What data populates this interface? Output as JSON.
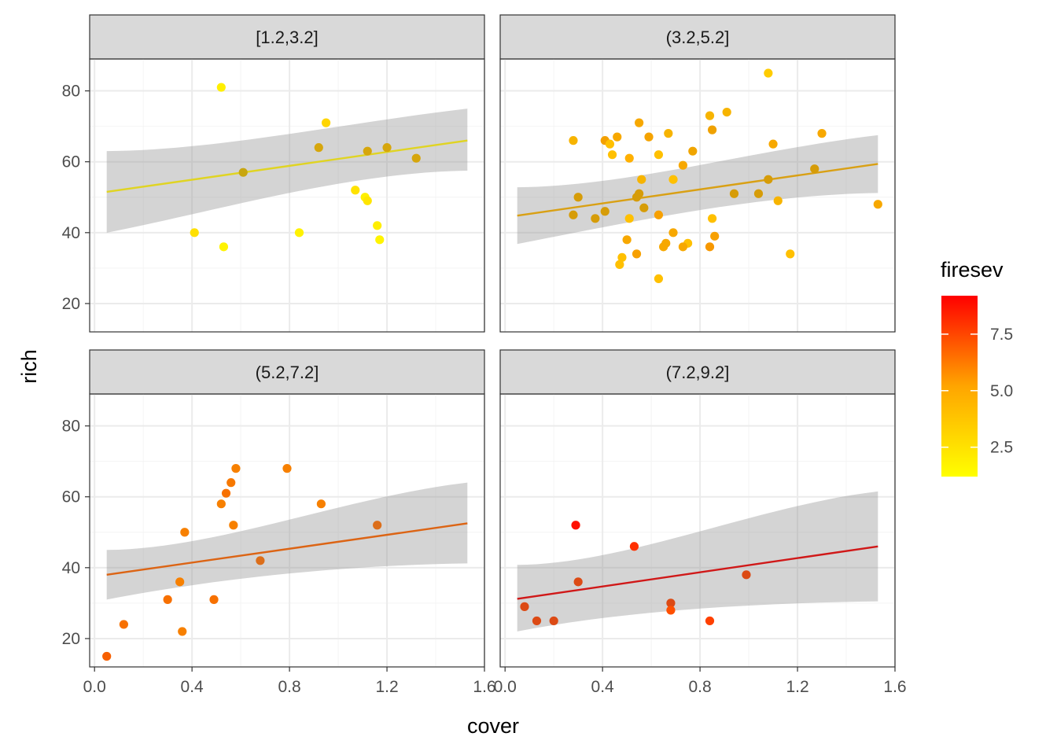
{
  "chart_data": {
    "type": "scatter",
    "facet_by": "firesev",
    "xlabel": "cover",
    "ylabel": "rich",
    "xlim": [
      -0.02,
      1.6
    ],
    "ylim": [
      12,
      89
    ],
    "x_ticks": [
      "0.0",
      "0.4",
      "0.8",
      "1.2",
      "1.6"
    ],
    "y_ticks": [
      "20",
      "40",
      "60",
      "80"
    ],
    "grid": true,
    "legend": {
      "title": "firesev",
      "placement": "right",
      "type": "colorbar",
      "range": [
        1.2,
        9.2
      ],
      "labels": [
        "2.5",
        "5.0",
        "7.5"
      ],
      "colors": [
        "#FFFF00",
        "#FFA500",
        "#FF0000"
      ]
    },
    "panels": [
      {
        "label": "[1.2,3.2]",
        "fit": {
          "x": [
            0.05,
            1.53
          ],
          "y": [
            51.5,
            66
          ],
          "lower": [
            40,
            57.5
          ],
          "upper": [
            63,
            75
          ],
          "color": "#E0D422"
        },
        "points": [
          {
            "x": 0.52,
            "y": 81,
            "color": "#FFEF00"
          },
          {
            "x": 0.95,
            "y": 71,
            "color": "#FFD500"
          },
          {
            "x": 0.92,
            "y": 64,
            "color": "#D6A60C"
          },
          {
            "x": 1.12,
            "y": 63,
            "color": "#D6A60C"
          },
          {
            "x": 1.2,
            "y": 64,
            "color": "#D6A60C"
          },
          {
            "x": 1.32,
            "y": 61,
            "color": "#D6A60C"
          },
          {
            "x": 0.61,
            "y": 57,
            "color": "#C8A60F"
          },
          {
            "x": 1.07,
            "y": 52,
            "color": "#FFE200"
          },
          {
            "x": 1.11,
            "y": 50,
            "color": "#FFF000"
          },
          {
            "x": 1.12,
            "y": 49,
            "color": "#FFE500"
          },
          {
            "x": 1.16,
            "y": 42,
            "color": "#FFEE00"
          },
          {
            "x": 0.41,
            "y": 40,
            "color": "#FFE000"
          },
          {
            "x": 0.84,
            "y": 40,
            "color": "#FFF200"
          },
          {
            "x": 1.17,
            "y": 38,
            "color": "#FFF400"
          },
          {
            "x": 0.53,
            "y": 36,
            "color": "#FFF300"
          }
        ]
      },
      {
        "label": "(3.2,5.2]",
        "fit": {
          "x": [
            0.05,
            1.53
          ],
          "y": [
            44.8,
            59.4
          ],
          "lower": [
            36.8,
            51.2
          ],
          "upper": [
            52.8,
            67.5
          ],
          "color": "#D9A014"
        },
        "points": [
          {
            "x": 1.08,
            "y": 85,
            "color": "#FFCC00"
          },
          {
            "x": 0.91,
            "y": 74,
            "color": "#F7B400"
          },
          {
            "x": 0.84,
            "y": 73,
            "color": "#F7B400"
          },
          {
            "x": 0.55,
            "y": 71,
            "color": "#F7A800"
          },
          {
            "x": 0.85,
            "y": 69,
            "color": "#EFA100"
          },
          {
            "x": 1.3,
            "y": 68,
            "color": "#F7A800"
          },
          {
            "x": 0.67,
            "y": 68,
            "color": "#F7B400"
          },
          {
            "x": 0.46,
            "y": 67,
            "color": "#F7A800"
          },
          {
            "x": 0.59,
            "y": 67,
            "color": "#F5A300"
          },
          {
            "x": 0.28,
            "y": 66,
            "color": "#F7B400"
          },
          {
            "x": 0.41,
            "y": 66,
            "color": "#F3A000"
          },
          {
            "x": 0.43,
            "y": 65,
            "color": "#FFC000"
          },
          {
            "x": 1.1,
            "y": 65,
            "color": "#F7A800"
          },
          {
            "x": 0.77,
            "y": 63,
            "color": "#F0A500"
          },
          {
            "x": 0.44,
            "y": 62,
            "color": "#FFC000"
          },
          {
            "x": 0.63,
            "y": 62,
            "color": "#FFC000"
          },
          {
            "x": 0.51,
            "y": 61,
            "color": "#FFB000"
          },
          {
            "x": 0.73,
            "y": 59,
            "color": "#F7A800"
          },
          {
            "x": 1.27,
            "y": 58,
            "color": "#D69C08"
          },
          {
            "x": 1.08,
            "y": 55,
            "color": "#D69C08"
          },
          {
            "x": 0.56,
            "y": 55,
            "color": "#F7B400"
          },
          {
            "x": 0.69,
            "y": 55,
            "color": "#FFC000"
          },
          {
            "x": 0.94,
            "y": 51,
            "color": "#D69C08"
          },
          {
            "x": 1.04,
            "y": 51,
            "color": "#D69C08"
          },
          {
            "x": 0.55,
            "y": 51,
            "color": "#D69C08"
          },
          {
            "x": 0.54,
            "y": 50,
            "color": "#D69C08"
          },
          {
            "x": 0.3,
            "y": 50,
            "color": "#D69C08"
          },
          {
            "x": 1.12,
            "y": 49,
            "color": "#F7B400"
          },
          {
            "x": 1.53,
            "y": 48,
            "color": "#F7A800"
          },
          {
            "x": 0.57,
            "y": 47,
            "color": "#D69C08"
          },
          {
            "x": 0.41,
            "y": 46,
            "color": "#D69C08"
          },
          {
            "x": 0.28,
            "y": 45,
            "color": "#D69C08"
          },
          {
            "x": 0.63,
            "y": 45,
            "color": "#F7A000"
          },
          {
            "x": 0.37,
            "y": 44,
            "color": "#D69C08"
          },
          {
            "x": 0.51,
            "y": 44,
            "color": "#FFC000"
          },
          {
            "x": 0.85,
            "y": 44,
            "color": "#FFC000"
          },
          {
            "x": 0.69,
            "y": 40,
            "color": "#F7A800"
          },
          {
            "x": 0.86,
            "y": 39,
            "color": "#F7A000"
          },
          {
            "x": 0.5,
            "y": 38,
            "color": "#F7A800"
          },
          {
            "x": 0.66,
            "y": 37,
            "color": "#F7A800"
          },
          {
            "x": 0.75,
            "y": 37,
            "color": "#FFC000"
          },
          {
            "x": 0.65,
            "y": 36,
            "color": "#F7A800"
          },
          {
            "x": 0.73,
            "y": 36,
            "color": "#F7A800"
          },
          {
            "x": 0.84,
            "y": 36,
            "color": "#F79800"
          },
          {
            "x": 0.54,
            "y": 34,
            "color": "#F7A000"
          },
          {
            "x": 1.17,
            "y": 34,
            "color": "#FFC000"
          },
          {
            "x": 0.48,
            "y": 33,
            "color": "#FFC000"
          },
          {
            "x": 0.47,
            "y": 31,
            "color": "#FFC000"
          },
          {
            "x": 0.63,
            "y": 27,
            "color": "#FFC000"
          }
        ]
      },
      {
        "label": "(5.2,7.2]",
        "fit": {
          "x": [
            0.05,
            1.53
          ],
          "y": [
            38,
            52.5
          ],
          "lower": [
            31,
            41.2
          ],
          "upper": [
            45,
            64
          ],
          "color": "#DC6414"
        },
        "points": [
          {
            "x": 0.79,
            "y": 68,
            "color": "#F78000"
          },
          {
            "x": 0.58,
            "y": 68,
            "color": "#F78000"
          },
          {
            "x": 0.56,
            "y": 64,
            "color": "#F77800"
          },
          {
            "x": 0.54,
            "y": 61,
            "color": "#F77000"
          },
          {
            "x": 0.52,
            "y": 58,
            "color": "#F78000"
          },
          {
            "x": 0.93,
            "y": 58,
            "color": "#F78000"
          },
          {
            "x": 0.57,
            "y": 52,
            "color": "#F78000"
          },
          {
            "x": 1.16,
            "y": 52,
            "color": "#DC6E1A"
          },
          {
            "x": 0.37,
            "y": 50,
            "color": "#F78000"
          },
          {
            "x": 0.68,
            "y": 42,
            "color": "#DC6E1A"
          },
          {
            "x": 0.35,
            "y": 36,
            "color": "#F78000"
          },
          {
            "x": 0.3,
            "y": 31,
            "color": "#F77000"
          },
          {
            "x": 0.49,
            "y": 31,
            "color": "#F77000"
          },
          {
            "x": 0.12,
            "y": 24,
            "color": "#F77000"
          },
          {
            "x": 0.36,
            "y": 22,
            "color": "#F78000"
          },
          {
            "x": 0.05,
            "y": 15,
            "color": "#F76000"
          }
        ]
      },
      {
        "label": "(7.2,9.2]",
        "fit": {
          "x": [
            0.05,
            1.53
          ],
          "y": [
            31.2,
            46
          ],
          "lower": [
            22,
            30.5
          ],
          "upper": [
            40.8,
            61.5
          ],
          "color": "#D01818"
        },
        "points": [
          {
            "x": 0.29,
            "y": 52,
            "color": "#FF1000"
          },
          {
            "x": 0.53,
            "y": 46,
            "color": "#FF3000"
          },
          {
            "x": 0.99,
            "y": 38,
            "color": "#DC4A14"
          },
          {
            "x": 0.3,
            "y": 36,
            "color": "#DC4A14"
          },
          {
            "x": 0.68,
            "y": 30,
            "color": "#DC4A14"
          },
          {
            "x": 0.68,
            "y": 28,
            "color": "#FF5000"
          },
          {
            "x": 0.08,
            "y": 29,
            "color": "#DC4A14"
          },
          {
            "x": 0.13,
            "y": 25,
            "color": "#DC4A14"
          },
          {
            "x": 0.2,
            "y": 25,
            "color": "#DC4A14"
          },
          {
            "x": 0.84,
            "y": 25,
            "color": "#FF4000"
          }
        ]
      }
    ]
  }
}
